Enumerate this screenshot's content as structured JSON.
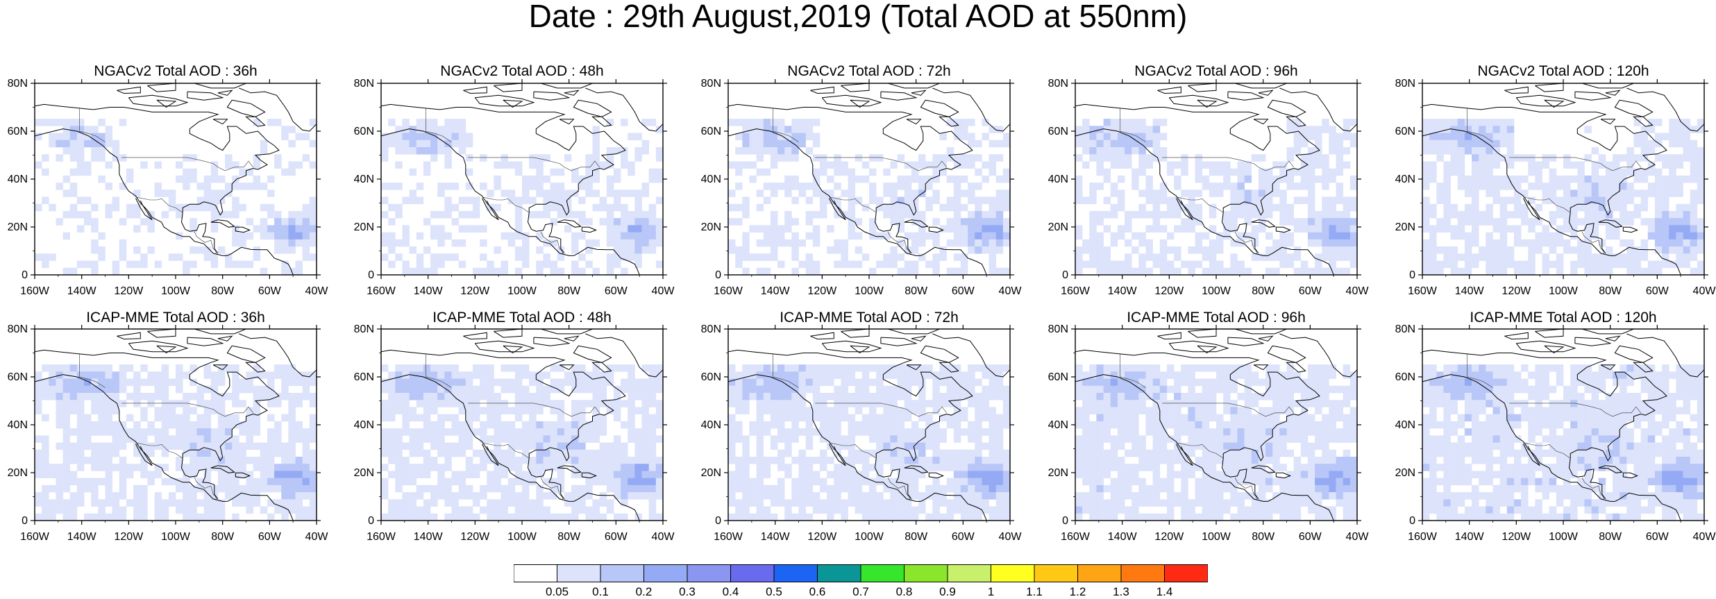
{
  "title": "Date : 29th August,2019 (Total AOD at 550nm)",
  "x_ticks": [
    "160W",
    "140W",
    "120W",
    "100W",
    "80W",
    "60W",
    "40W"
  ],
  "y_ticks": [
    "0",
    "20N",
    "40N",
    "60N",
    "80N"
  ],
  "axis_ranges": {
    "lon": [
      -160,
      -40
    ],
    "lat": [
      0,
      80
    ]
  },
  "rows": [
    {
      "model": "NGACv2",
      "panels": [
        {
          "title": "NGACv2 Total AOD : 36h",
          "lead": "36h"
        },
        {
          "title": "NGACv2 Total AOD : 48h",
          "lead": "48h"
        },
        {
          "title": "NGACv2 Total AOD : 72h",
          "lead": "72h"
        },
        {
          "title": "NGACv2 Total AOD : 96h",
          "lead": "96h"
        },
        {
          "title": "NGACv2 Total AOD : 120h",
          "lead": "120h"
        }
      ]
    },
    {
      "model": "ICAP-MME",
      "panels": [
        {
          "title": "ICAP-MME Total AOD : 36h",
          "lead": "36h"
        },
        {
          "title": "ICAP-MME Total AOD : 48h",
          "lead": "48h"
        },
        {
          "title": "ICAP-MME Total AOD : 72h",
          "lead": "72h"
        },
        {
          "title": "ICAP-MME Total AOD : 96h",
          "lead": "96h"
        },
        {
          "title": "ICAP-MME Total AOD : 120h",
          "lead": "120h"
        }
      ]
    }
  ],
  "colorbar": {
    "labels": [
      "0.05",
      "0.1",
      "0.2",
      "0.3",
      "0.4",
      "0.5",
      "0.6",
      "0.7",
      "0.8",
      "0.9",
      "1",
      "1.1",
      "1.2",
      "1.3",
      "1.4"
    ],
    "colors": [
      "#ffffff",
      "#dce3fb",
      "#b8c7f7",
      "#94aaf4",
      "#8a96ef",
      "#6a6aef",
      "#1c64f4",
      "#0a9696",
      "#36e62a",
      "#8ae62a",
      "#c8f06a",
      "#ffff20",
      "#ffc814",
      "#ffa514",
      "#fe7a10",
      "#fe2a14"
    ]
  },
  "palette": {
    "light": "#dce3fb",
    "medium": "#b8c7f7",
    "strong": "#94aaf4",
    "deep": "#6a6aef",
    "land_line": "#000000"
  }
}
